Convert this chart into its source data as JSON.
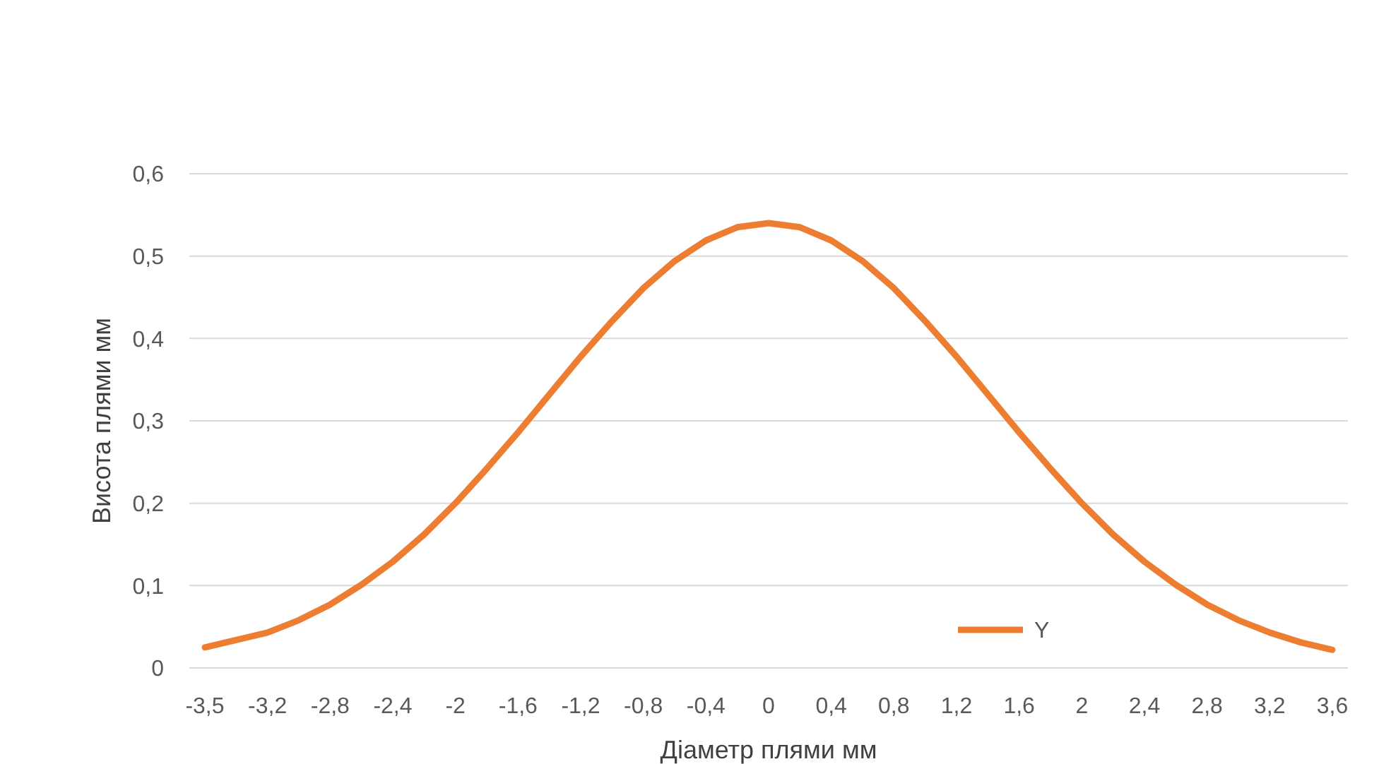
{
  "chart_data": {
    "type": "line",
    "xlabel": "Діаметр плями мм",
    "ylabel": "Висота плями мм",
    "categories": [
      "-3,5",
      null,
      "-3,2",
      null,
      "-2,8",
      null,
      "-2,4",
      null,
      "-2",
      null,
      "-1,6",
      null,
      "-1,2",
      null,
      "-0,8",
      null,
      "-0,4",
      null,
      "0",
      null,
      "0,4",
      null,
      "0,8",
      null,
      "1,2",
      null,
      "1,6",
      null,
      "2",
      null,
      "2,4",
      null,
      "2,8",
      null,
      "3,2",
      null,
      "3,6"
    ],
    "series": [
      {
        "name": "Y",
        "color": "#ed7d31",
        "values": [
          0.025,
          0.034,
          0.043,
          0.058,
          0.077,
          0.101,
          0.129,
          0.162,
          0.2,
          0.242,
          0.286,
          0.332,
          0.378,
          0.421,
          0.461,
          0.494,
          0.519,
          0.535,
          0.54,
          0.535,
          0.519,
          0.494,
          0.461,
          0.421,
          0.378,
          0.332,
          0.286,
          0.242,
          0.2,
          0.162,
          0.129,
          0.101,
          0.077,
          0.058,
          0.043,
          0.031,
          0.022
        ]
      }
    ],
    "ylim": [
      0,
      0.6
    ],
    "yticks": [
      0,
      {
        "value": 0.1,
        "label": "0,1"
      },
      {
        "value": 0.2,
        "label": "0,2"
      },
      {
        "value": 0.3,
        "label": "0,3"
      },
      {
        "value": 0.4,
        "label": "0,4"
      },
      {
        "value": 0.5,
        "label": "0,5"
      },
      {
        "value": 0.6,
        "label": "0,6"
      }
    ],
    "grid": "y",
    "legend": "bottom right",
    "marker": "none",
    "line_style": "solid"
  }
}
